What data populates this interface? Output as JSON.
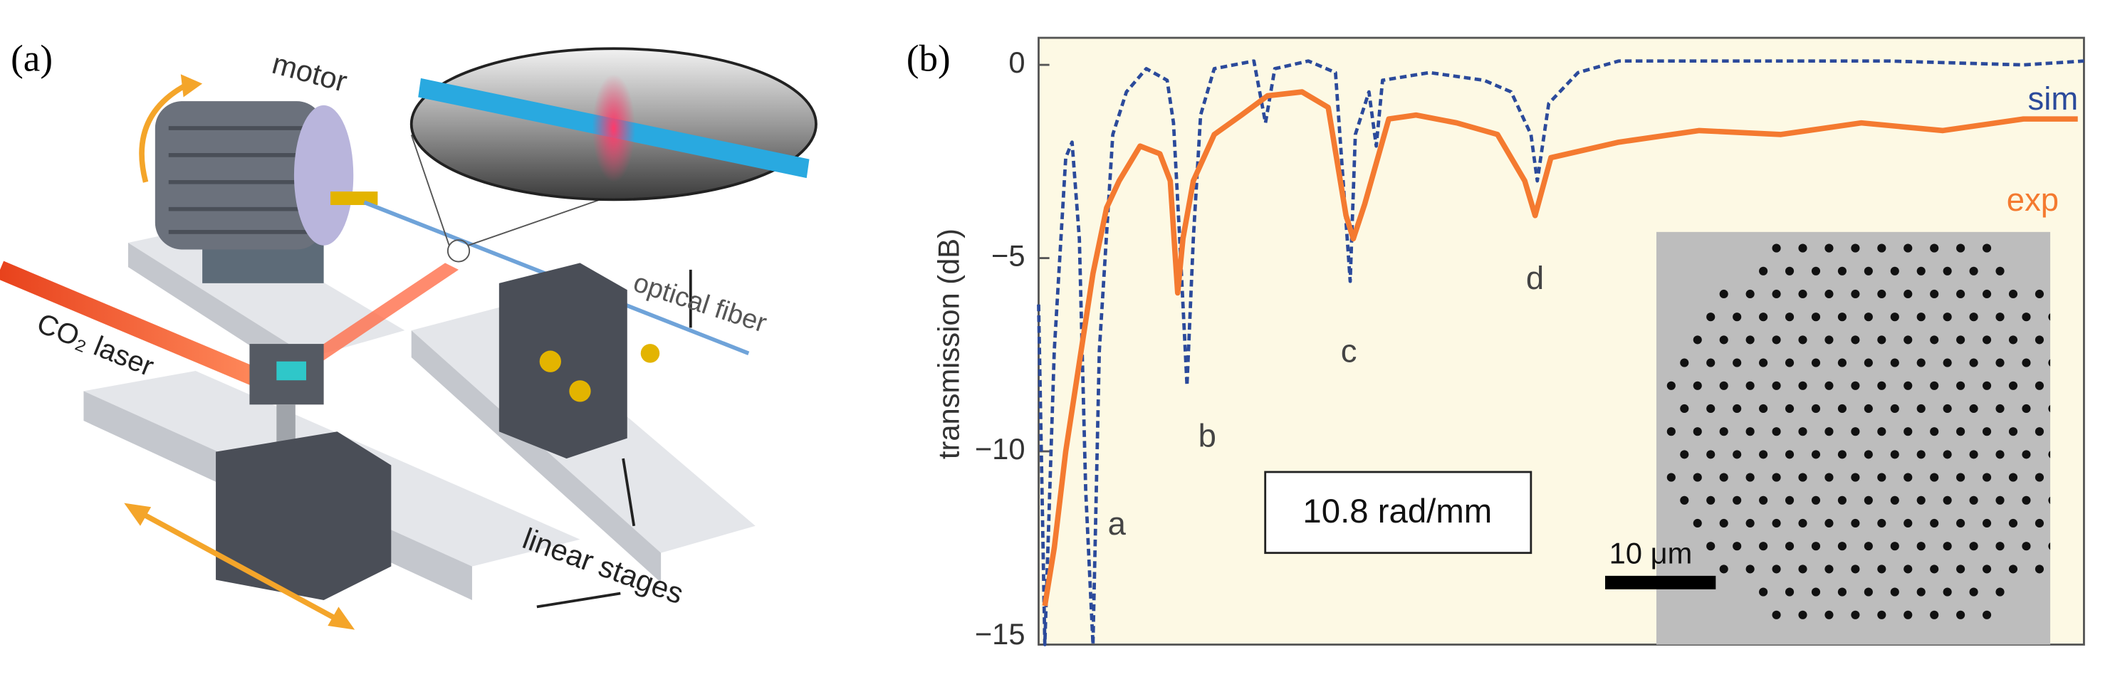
{
  "panel_a": {
    "label": "(a)",
    "motor": "motor",
    "fiber": "optical fiber",
    "laser": "CO₂ laser",
    "stages": "linear stages"
  },
  "chart_data": {
    "type": "line",
    "panel_label": "(b)",
    "y_label": "transmission (dB)",
    "xlim": [
      0,
      100
    ],
    "ylim": [
      -15,
      0.7
    ],
    "yticks": [
      0,
      {
        "value": -5,
        "label": "−5"
      },
      {
        "value": -10,
        "label": "−10"
      },
      {
        "value": -15,
        "label": "−15"
      }
    ],
    "series": [
      {
        "name": "sim",
        "color": "#2b4a9b",
        "dashed": true,
        "x": [
          0,
          0.6,
          1.5,
          2.6,
          3.2,
          3.9,
          4.5,
          5.2,
          5.8,
          7.1,
          8.4,
          10.3,
          12.3,
          12.9,
          13.5,
          14.2,
          14.8,
          15.5,
          16.8,
          20.6,
          21.7,
          22.6,
          25.8,
          28.4,
          29.8,
          30.3,
          31.6,
          32.3,
          32.9,
          37.4,
          42.6,
          45.2,
          47.1,
          47.7,
          48.8,
          51.6,
          55.5,
          68.4,
          81.3,
          94.2,
          100
        ],
        "values": [
          -6.2,
          -15,
          -7.4,
          -2.4,
          -2.0,
          -4.5,
          -11,
          -15,
          -7.4,
          -1.8,
          -0.7,
          -0.1,
          -0.4,
          -1.5,
          -4.5,
          -8.3,
          -4.5,
          -1.3,
          -0.1,
          0.1,
          -1.5,
          -0.1,
          0.1,
          -0.2,
          -5.6,
          -1.8,
          -0.7,
          -2.1,
          -0.4,
          -0.2,
          -0.4,
          -0.7,
          -1.8,
          -3.0,
          -1.0,
          -0.2,
          0.1,
          0.1,
          0.1,
          0.0,
          0.1
        ]
      },
      {
        "name": "exp",
        "color": "#f47a30",
        "dashed": false,
        "x": [
          0.6,
          1.5,
          2.6,
          3.9,
          5.2,
          6.5,
          7.7,
          9.7,
          11.6,
          12.6,
          13.3,
          13.8,
          14.8,
          16.8,
          19.4,
          21.9,
          25.2,
          27.7,
          29.4,
          30.1,
          31.2,
          33.5,
          36.1,
          40.0,
          43.9,
          46.5,
          47.5,
          49.0,
          55.5,
          63.2,
          71.0,
          78.7,
          86.5,
          94.2,
          99.4
        ],
        "values": [
          -14,
          -12.5,
          -10.0,
          -7.7,
          -5.4,
          -3.7,
          -3.0,
          -2.1,
          -2.3,
          -3.0,
          -5.9,
          -4.5,
          -3.0,
          -1.8,
          -1.3,
          -0.8,
          -0.7,
          -1.1,
          -3.9,
          -4.5,
          -3.6,
          -1.4,
          -1.3,
          -1.5,
          -1.8,
          -3.0,
          -3.9,
          -2.4,
          -2.0,
          -1.7,
          -1.8,
          -1.5,
          -1.7,
          -1.4,
          -1.4
        ]
      }
    ],
    "annotations": [
      "a",
      "b",
      "c",
      "d"
    ],
    "box_label": "10.8 rad/mm",
    "inset_scale": "10 μm"
  }
}
